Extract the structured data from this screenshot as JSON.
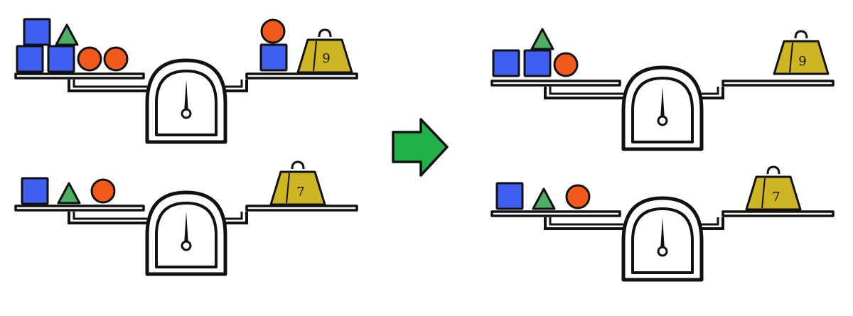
{
  "colors": {
    "ink": "#111111",
    "square": "#3f5ff0",
    "circle": "#f25a1c",
    "triangle": "#4caf63",
    "weight": "#cdb524",
    "arrow": "#22b04a",
    "dial_face": "#ffffff"
  },
  "scales": [
    {
      "id": "before-top",
      "left_pan": [
        "square",
        "square",
        "square",
        "triangle",
        "circle",
        "circle"
      ],
      "right_pan": [
        "circle",
        "square"
      ],
      "weight_label": "9"
    },
    {
      "id": "before-bottom",
      "left_pan": [
        "square",
        "triangle",
        "circle"
      ],
      "right_pan": [],
      "weight_label": "7"
    },
    {
      "id": "after-top",
      "left_pan": [
        "square",
        "square",
        "triangle",
        "circle"
      ],
      "right_pan": [],
      "weight_label": "9"
    },
    {
      "id": "after-bottom",
      "left_pan": [
        "square",
        "triangle",
        "circle"
      ],
      "right_pan": [],
      "weight_label": "7"
    }
  ],
  "arrow_direction": "right"
}
